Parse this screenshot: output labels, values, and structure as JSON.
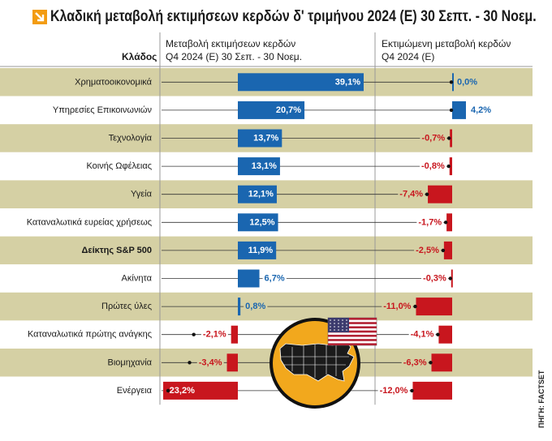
{
  "title": "Κλαδική μεταβολή εκτιμήσεων κερδών δ' τριμήνου 2024 (E) 30 Σεπτ. - 30 Νοεμ.",
  "headers": {
    "sector": "Κλάδος",
    "col1_line1": "Μεταβολή εκτιμήσεων κερδών",
    "col1_line2": "Q4 2024 (E) 30 Σεπ. - 30 Νοεμ.",
    "col2_line1": "Εκτιμώμενη μεταβολή κερδών",
    "col2_line2": "Q4 2024 (E)"
  },
  "source": "ΠΗΓΗ: FACTSET",
  "colors": {
    "band": "#d5d0a4",
    "positive": "#1a66b0",
    "negative": "#c8161e",
    "grid": "#999999",
    "title_icon": "#f39c12"
  },
  "chart_data": {
    "type": "bar",
    "title": "Κλαδική μεταβολή εκτιμήσεων κερδών δ' τριμήνου 2024 (E) 30 Σεπτ. - 30 Νοεμ.",
    "categories": [
      "Χρηματοοικονομικά",
      "Υπηρεσίες Επικοινωνιών",
      "Τεχνολογία",
      "Κοινής Ωφέλειας",
      "Υγεία",
      "Καταναλωτικά ευρείας χρήσεως",
      "Δείκτης S&P 500",
      "Ακίνητα",
      "Πρώτες ύλες",
      "Καταναλωτικά πρώτης ανάγκης",
      "Βιομηχανία",
      "Ενέργεια"
    ],
    "series": [
      {
        "name": "Μεταβολή εκτιμήσεων κερδών Q4 2024 (E) 30 Σεπ. - 30 Νοεμ.",
        "values": [
          39.1,
          20.7,
          13.7,
          13.1,
          12.1,
          12.5,
          11.9,
          6.7,
          0.8,
          -2.1,
          -3.4,
          -23.2
        ],
        "labels": [
          "39,1%",
          "20,7%",
          "13,7%",
          "13,1%",
          "12,1%",
          "12,5%",
          "11,9%",
          "6,7%",
          "0,8%",
          "-2,1%",
          "-3,4%",
          "-23,2%"
        ]
      },
      {
        "name": "Εκτιμώμενη μεταβολή κερδών Q4 2024 (E)",
        "values": [
          0.0,
          4.2,
          -0.7,
          -0.8,
          -7.4,
          -1.7,
          -2.5,
          -0.3,
          -11.0,
          -4.1,
          -6.3,
          -12.0
        ],
        "labels": [
          "0,0%",
          "4,2%",
          "-0,7%",
          "-0,8%",
          "-7,4%",
          "-1,7%",
          "-2,5%",
          "-0,3%",
          "-11,0%",
          "-4,1%",
          "-6,3%",
          "-12,0%"
        ]
      }
    ],
    "highlight_category": "Δείκτης S&P 500",
    "grid": false,
    "legend": "none"
  }
}
